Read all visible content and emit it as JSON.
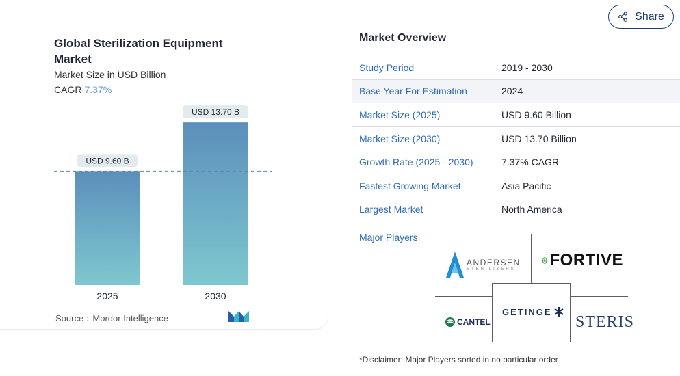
{
  "chart": {
    "title": "Global Sterilization Equipment Market",
    "subtitle": "Market Size in USD Billion",
    "cagr_label": "CAGR",
    "cagr_value": "7.37%",
    "source_label": "Source :",
    "source_value": "Mordor Intelligence"
  },
  "chart_data": {
    "type": "bar",
    "categories": [
      "2025",
      "2030"
    ],
    "values": [
      9.6,
      13.7
    ],
    "data_labels": [
      "USD 9.60 B",
      "USD 13.70 B"
    ],
    "title": "Global Sterilization Equipment Market",
    "ylabel": "Market Size in USD Billion",
    "ylim": [
      0,
      14.4
    ],
    "reference_line": 9.6,
    "grid": false,
    "colors": {
      "bar_top": "#5b8fbc",
      "bar_bottom": "#7fc8cf",
      "reference": "#5b87b0"
    }
  },
  "share": {
    "label": "Share"
  },
  "overview": {
    "title": "Market Overview",
    "rows": [
      {
        "key": "Study Period",
        "value": "2019 - 2030"
      },
      {
        "key": "Base Year For Estimation",
        "value": "2024"
      },
      {
        "key": "Market Size (2025)",
        "value": "USD 9.60 Billion"
      },
      {
        "key": "Market Size (2030)",
        "value": "USD 13.70 Billion"
      },
      {
        "key": "Growth Rate (2025 - 2030)",
        "value": "7.37% CAGR"
      },
      {
        "key": "Fastest Growing Market",
        "value": "Asia Pacific"
      },
      {
        "key": "Largest Market",
        "value": "North America"
      }
    ],
    "major_players_label": "Major Players",
    "players": {
      "andersen": "ANDERSEN",
      "andersen_sub": "STERILIZERS",
      "fortive": "FORTIVE",
      "getinge": "GETINGE",
      "cantel": "CANTEL",
      "steris": "STERIS"
    },
    "disclaimer": "*Disclaimer: Major Players sorted in no particular order"
  },
  "colors": {
    "accent": "#2f6db5",
    "brand_dark": "#1f3f73",
    "fortive_green": "#3aa845"
  }
}
